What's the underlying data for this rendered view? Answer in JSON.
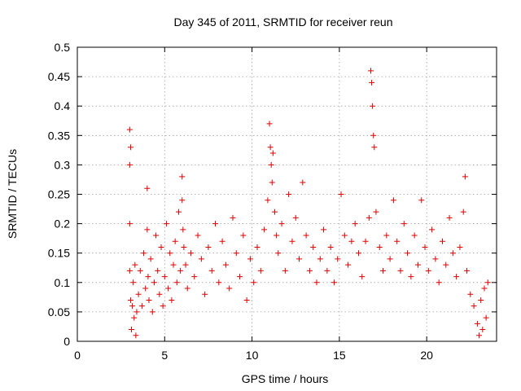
{
  "chart_data": {
    "type": "scatter",
    "title": "Day 345 of 2011, SRMTID for receiver reun",
    "xlabel": "GPS time / hours",
    "ylabel": "SRMTID / TECUs",
    "xlim": [
      0,
      24
    ],
    "ylim": [
      0,
      0.5
    ],
    "xticks": [
      0,
      5,
      10,
      15,
      20
    ],
    "xtick_labels": [
      "0",
      "5",
      "10",
      "15",
      "20"
    ],
    "yticks": [
      0,
      0.05,
      0.1,
      0.15,
      0.2,
      0.25,
      0.3,
      0.35,
      0.4,
      0.45,
      0.5
    ],
    "ytick_labels": [
      "0",
      "0.05",
      "0.1",
      "0.15",
      "0.2",
      "0.25",
      "0.3",
      "0.35",
      "0.4",
      "0.45",
      "0.5"
    ],
    "grid": true,
    "marker": "+",
    "color": "#e00000",
    "series": [
      {
        "name": "SRMTID",
        "x": [
          3.0,
          3.0,
          3.0,
          3.0,
          3.05,
          3.05,
          3.1,
          3.15,
          3.2,
          3.25,
          3.3,
          3.35,
          3.4,
          3.5,
          3.6,
          3.7,
          3.8,
          3.9,
          4.0,
          4.0,
          4.05,
          4.1,
          4.2,
          4.3,
          4.4,
          4.5,
          4.6,
          4.7,
          4.8,
          4.9,
          5.0,
          5.1,
          5.2,
          5.3,
          5.4,
          5.5,
          5.6,
          5.7,
          5.8,
          5.9,
          6.0,
          6.0,
          6.05,
          6.1,
          6.2,
          6.3,
          6.5,
          6.7,
          6.9,
          7.1,
          7.3,
          7.5,
          7.7,
          7.9,
          8.1,
          8.3,
          8.5,
          8.7,
          8.9,
          9.1,
          9.3,
          9.5,
          9.7,
          9.9,
          10.1,
          10.3,
          10.5,
          10.7,
          10.9,
          11.0,
          11.05,
          11.1,
          11.15,
          11.2,
          11.3,
          11.4,
          11.5,
          11.7,
          11.9,
          12.1,
          12.3,
          12.5,
          12.7,
          12.9,
          13.1,
          13.3,
          13.5,
          13.7,
          13.9,
          14.1,
          14.3,
          14.5,
          14.7,
          14.9,
          15.1,
          15.3,
          15.5,
          15.7,
          15.9,
          16.1,
          16.3,
          16.5,
          16.7,
          16.8,
          16.85,
          16.9,
          16.95,
          17.0,
          17.1,
          17.3,
          17.5,
          17.7,
          17.9,
          18.1,
          18.3,
          18.5,
          18.7,
          18.9,
          19.1,
          19.3,
          19.5,
          19.7,
          19.9,
          20.1,
          20.3,
          20.5,
          20.7,
          20.9,
          21.1,
          21.3,
          21.5,
          21.7,
          21.9,
          22.1,
          22.2,
          22.3,
          22.5,
          22.7,
          22.9,
          23.0,
          23.1,
          23.2,
          23.3,
          23.4,
          23.5
        ],
        "y": [
          0.36,
          0.3,
          0.2,
          0.12,
          0.33,
          0.07,
          0.02,
          0.06,
          0.1,
          0.04,
          0.13,
          0.01,
          0.05,
          0.08,
          0.12,
          0.06,
          0.15,
          0.09,
          0.26,
          0.19,
          0.11,
          0.07,
          0.14,
          0.05,
          0.1,
          0.18,
          0.12,
          0.08,
          0.16,
          0.06,
          0.11,
          0.2,
          0.09,
          0.15,
          0.07,
          0.13,
          0.17,
          0.1,
          0.22,
          0.12,
          0.28,
          0.24,
          0.19,
          0.16,
          0.13,
          0.09,
          0.15,
          0.11,
          0.18,
          0.14,
          0.08,
          0.16,
          0.12,
          0.2,
          0.1,
          0.17,
          0.13,
          0.09,
          0.21,
          0.15,
          0.11,
          0.18,
          0.07,
          0.14,
          0.1,
          0.16,
          0.12,
          0.19,
          0.24,
          0.37,
          0.33,
          0.3,
          0.27,
          0.32,
          0.22,
          0.18,
          0.15,
          0.2,
          0.12,
          0.25,
          0.17,
          0.21,
          0.14,
          0.27,
          0.18,
          0.12,
          0.16,
          0.1,
          0.14,
          0.19,
          0.12,
          0.16,
          0.1,
          0.14,
          0.25,
          0.18,
          0.13,
          0.17,
          0.2,
          0.15,
          0.11,
          0.17,
          0.21,
          0.46,
          0.44,
          0.4,
          0.35,
          0.33,
          0.22,
          0.16,
          0.12,
          0.18,
          0.14,
          0.24,
          0.17,
          0.12,
          0.2,
          0.15,
          0.11,
          0.18,
          0.13,
          0.24,
          0.16,
          0.12,
          0.19,
          0.14,
          0.1,
          0.17,
          0.13,
          0.21,
          0.15,
          0.11,
          0.16,
          0.22,
          0.28,
          0.12,
          0.08,
          0.06,
          0.03,
          0.01,
          0.07,
          0.02,
          0.09,
          0.04,
          0.1
        ]
      }
    ]
  }
}
